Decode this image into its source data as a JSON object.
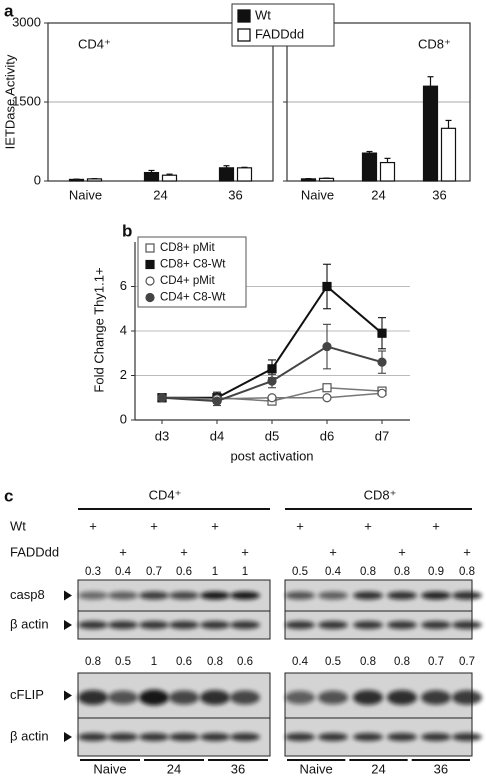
{
  "chart_data": [
    {
      "type": "bar",
      "panel_label": "a",
      "ylabel": "IETDase Activity",
      "ylim": [
        0,
        3000
      ],
      "yticks": [
        0,
        1500,
        3000
      ],
      "grid": true,
      "categories": [
        "Naive",
        "24",
        "36"
      ],
      "series": [
        {
          "name": "Wt",
          "color": "#111111"
        },
        {
          "name": "FADDdd",
          "color": "#ffffff"
        }
      ],
      "facets": [
        {
          "title": "CD4⁺",
          "values": [
            [
              30,
              160,
              250
            ],
            [
              40,
              110,
              250
            ]
          ],
          "errors": [
            [
              5,
              40,
              40
            ],
            [
              5,
              20,
              10
            ]
          ]
        },
        {
          "title": "CD8⁺",
          "values": [
            [
              40,
              530,
              1800
            ],
            [
              50,
              350,
              1000
            ]
          ],
          "errors": [
            [
              5,
              30,
              180
            ],
            [
              5,
              80,
              150
            ]
          ]
        }
      ]
    },
    {
      "type": "line",
      "panel_label": "b",
      "ylabel": "Fold Change Thy1.1+",
      "xlabel": "post activation",
      "categories": [
        "d3",
        "d4",
        "d5",
        "d6",
        "d7"
      ],
      "ylim": [
        0,
        8
      ],
      "yticks": [
        0,
        2,
        4,
        6
      ],
      "grid": true,
      "legend": "upper left",
      "series": [
        {
          "name": "CD8+ pMit",
          "color": "#777777",
          "marker": "square",
          "filled": false,
          "values": [
            1,
            1.0,
            0.85,
            1.45,
            1.3
          ]
        },
        {
          "name": "CD8+ C8-Wt",
          "color": "#111111",
          "marker": "square",
          "filled": true,
          "values": [
            1,
            1.0,
            2.3,
            6.0,
            3.9
          ],
          "errors": [
            0,
            0.25,
            0.4,
            1.0,
            0.7
          ]
        },
        {
          "name": "CD4+ pMit",
          "color": "#777777",
          "marker": "circle",
          "filled": false,
          "values": [
            1,
            0.95,
            1.0,
            1.0,
            1.2
          ]
        },
        {
          "name": "CD4+ C8-Wt",
          "color": "#444444",
          "marker": "circle",
          "filled": true,
          "values": [
            1,
            0.85,
            1.75,
            3.3,
            2.6
          ],
          "errors": [
            0,
            0.2,
            0.3,
            1.0,
            0.5
          ]
        }
      ]
    }
  ],
  "blot": {
    "panel_label": "c",
    "treatment_labels": [
      "Wt",
      "FADDdd"
    ],
    "blot_labels": [
      "casp8",
      "β actin",
      "cFLIP",
      "β actin"
    ],
    "groups": [
      {
        "title": "CD4⁺",
        "treatments": [
          [
            "+",
            null,
            "+",
            null,
            "+",
            null
          ],
          [
            null,
            "+",
            null,
            "+",
            null,
            "+"
          ]
        ],
        "casp8": [
          0.3,
          0.4,
          0.7,
          0.6,
          1,
          1
        ],
        "cflip": [
          0.8,
          0.5,
          1,
          0.6,
          0.8,
          0.6
        ],
        "timepoints": [
          "Naive",
          "24",
          "36"
        ]
      },
      {
        "title": "CD8⁺",
        "treatments": [
          [
            "+",
            null,
            "+",
            null,
            "+",
            null
          ],
          [
            null,
            "+",
            null,
            "+",
            null,
            "+"
          ]
        ],
        "casp8": [
          0.5,
          0.4,
          0.8,
          0.8,
          0.9,
          0.8
        ],
        "cflip": [
          0.4,
          0.5,
          0.8,
          0.8,
          0.7,
          0.7
        ],
        "timepoints": [
          "Naive",
          "24",
          "36"
        ]
      }
    ]
  }
}
